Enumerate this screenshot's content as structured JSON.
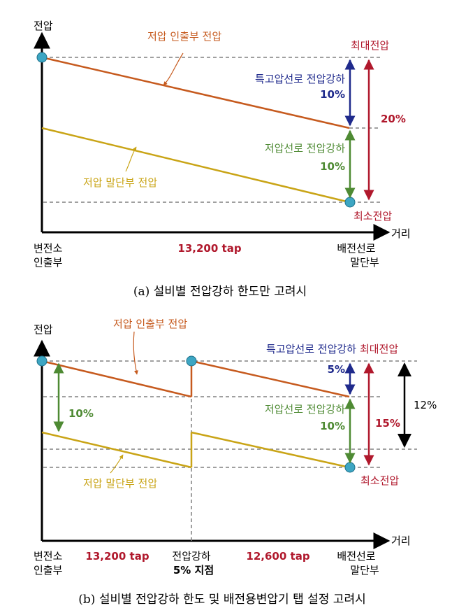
{
  "colors": {
    "upper": "#C65A1E",
    "lower": "#C9A416",
    "blue": "#1F2A8C",
    "green": "#4E8A33",
    "red": "#B0182C",
    "axis": "#000000",
    "dash": "#808080",
    "node": "#3DA6C3"
  },
  "a": {
    "y_axis": "전압",
    "x_axis": "거리",
    "upper_label": "저압 인출부 전압",
    "lower_label": "저압 말단부 전압",
    "max_label": "최대전압",
    "min_label": "최소전압",
    "hv_drop_label": "특고압선로 전압강하",
    "hv_drop_value": "10%",
    "lv_drop_label": "저압선로 전압강하",
    "lv_drop_value": "10%",
    "total_value": "20%",
    "start_line1": "변전소",
    "start_line2": "인출부",
    "tap": "13,200 tap",
    "end_line1": "배전선로",
    "end_line2": "말단부",
    "caption": "(a) 설비별 전압강하 한도만 고려시"
  },
  "b": {
    "y_axis": "전압",
    "x_axis": "거리",
    "upper_label": "저압 인출부 전압",
    "lower_label": "저압 말단부 전압",
    "max_label": "최대전압",
    "min_label": "최소전압",
    "hv_drop_label": "특고압선로 전압강하",
    "hv_drop_value": "5%",
    "lv_drop_label": "저압선로 전압강하",
    "lv_drop_value": "10%",
    "left_drop_value": "10%",
    "total_value": "15%",
    "band_value": "12%",
    "start_line1": "변전소",
    "start_line2": "인출부",
    "tap1": "13,200 tap",
    "mid_line1": "전압강하",
    "mid_line2": "5% 지점",
    "tap2": "12,600 tap",
    "end_line1": "배전선로",
    "end_line2": "말단부",
    "caption": "(b) 설비별 전압강하 한도 및 배전용변압기 탭 설정 고려시"
  }
}
